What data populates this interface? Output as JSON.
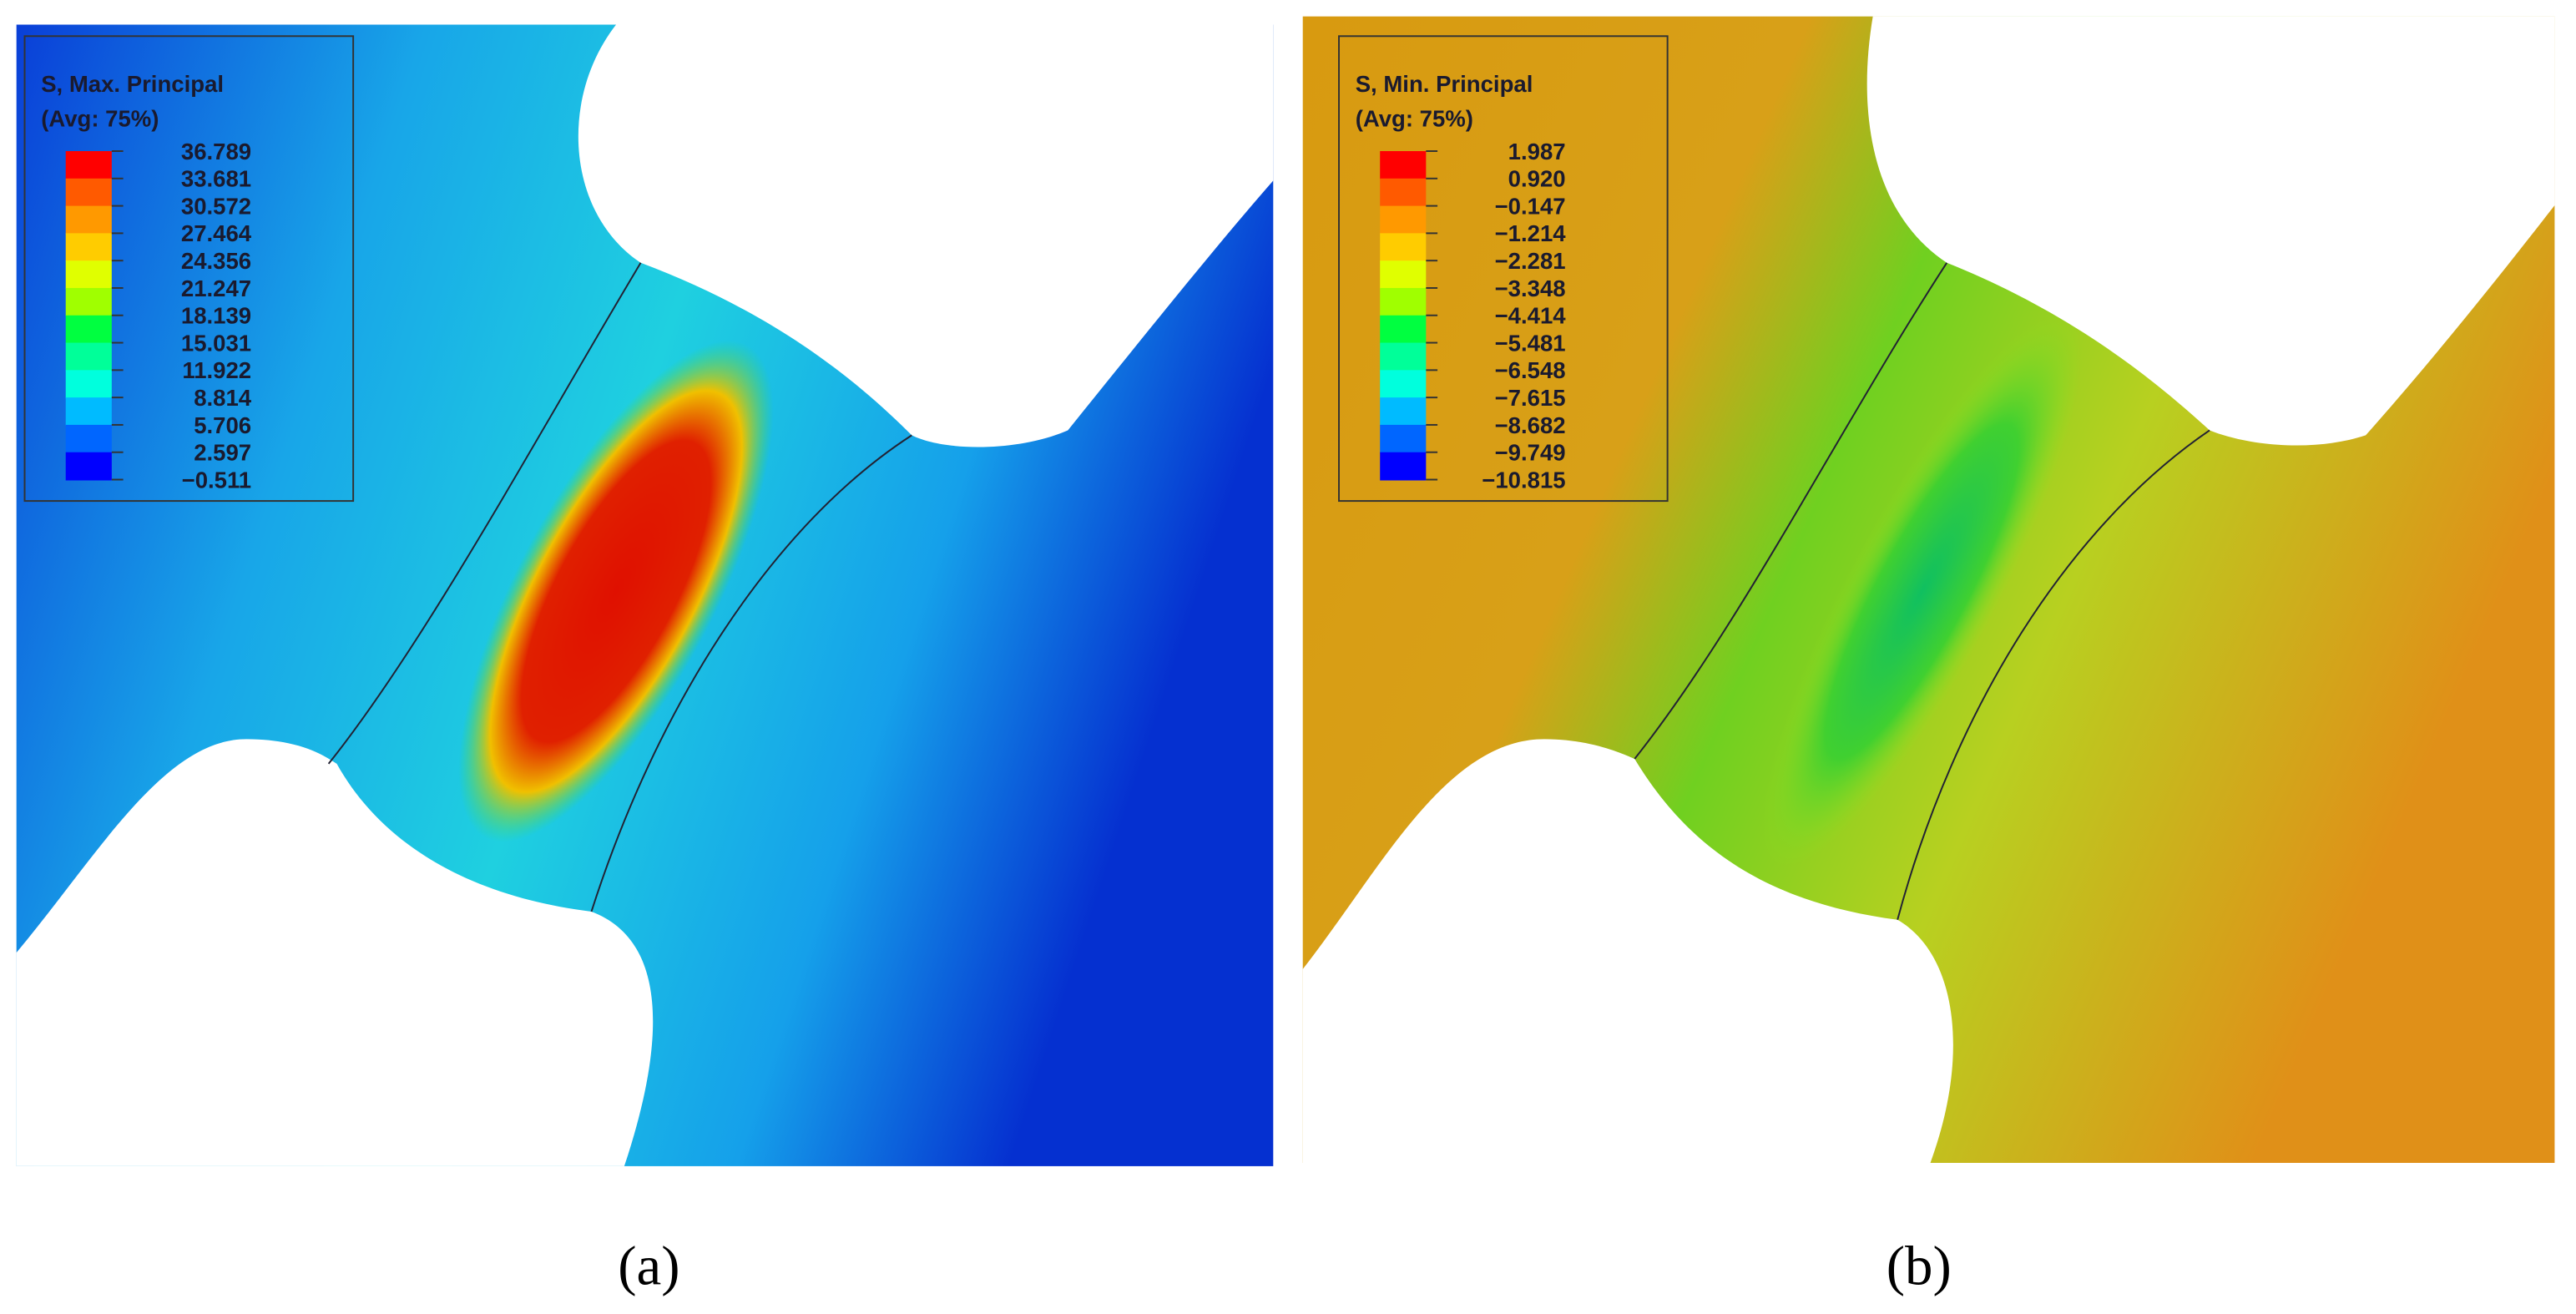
{
  "panels": [
    {
      "legend": {
        "title": [
          "S, Max. Principal",
          "(Avg: 75%)"
        ],
        "labels": [
          "36.789",
          "33.681",
          "30.572",
          "27.464",
          "24.356",
          "21.247",
          "18.139",
          "15.031",
          "11.922",
          "8.814",
          "5.706",
          "2.597",
          "−0.511"
        ]
      },
      "caption": "(a)"
    },
    {
      "legend": {
        "title": [
          "S, Min. Principal",
          "(Avg: 75%)"
        ],
        "labels": [
          "1.987",
          "0.920",
          "−0.147",
          "−1.214",
          "−2.281",
          "−3.348",
          "−4.414",
          "−5.481",
          "−6.548",
          "−7.615",
          "−8.682",
          "−9.749",
          "−10.815"
        ]
      },
      "caption": "(b)"
    }
  ]
}
